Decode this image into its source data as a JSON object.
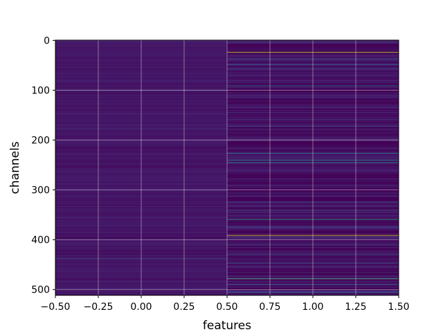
{
  "chart_data": {
    "type": "heatmap",
    "xlabel": "features",
    "ylabel": "channels",
    "colormap": "viridis",
    "grid": true,
    "xlim": [
      -0.5,
      1.5
    ],
    "ylim": [
      511.5,
      -0.5
    ],
    "x_ticks": [
      -0.5,
      -0.25,
      0.0,
      0.25,
      0.5,
      0.75,
      1.0,
      1.25,
      1.5
    ],
    "x_tick_labels": [
      "−0.50",
      "−0.25",
      "0.00",
      "0.25",
      "0.50",
      "0.75",
      "1.00",
      "1.25",
      "1.50"
    ],
    "y_ticks": [
      0,
      100,
      200,
      300,
      400,
      500
    ],
    "y_tick_labels": [
      "0",
      "100",
      "200",
      "300",
      "400",
      "500"
    ],
    "columns": [
      0,
      1
    ],
    "rows": 512,
    "column_0_base_value": 0.06,
    "column_1_base_value": 0.04,
    "column_0_highlights": [
      {
        "row": 3,
        "value": 0.15
      },
      {
        "row": 80,
        "value": 0.14
      },
      {
        "row": 176,
        "value": 0.16
      },
      {
        "row": 355,
        "value": 0.13
      },
      {
        "row": 438,
        "value": 0.22
      },
      {
        "row": 497,
        "value": 0.15
      }
    ],
    "column_1_highlights": [
      {
        "row": 3,
        "value": 0.3
      },
      {
        "row": 24,
        "value": 0.92
      },
      {
        "row": 37,
        "value": 0.28
      },
      {
        "row": 48,
        "value": 0.35
      },
      {
        "row": 57,
        "value": 0.22
      },
      {
        "row": 91,
        "value": 0.4
      },
      {
        "row": 172,
        "value": 0.3
      },
      {
        "row": 226,
        "value": 0.42
      },
      {
        "row": 240,
        "value": 0.45
      },
      {
        "row": 245,
        "value": 0.5
      },
      {
        "row": 325,
        "value": 0.25
      },
      {
        "row": 340,
        "value": 0.3
      },
      {
        "row": 359,
        "value": 0.62
      },
      {
        "row": 375,
        "value": 0.25
      },
      {
        "row": 391,
        "value": 0.95
      },
      {
        "row": 410,
        "value": 0.22
      },
      {
        "row": 430,
        "value": 0.3
      },
      {
        "row": 447,
        "value": 0.28
      },
      {
        "row": 478,
        "value": 0.7
      },
      {
        "row": 490,
        "value": 0.3
      },
      {
        "row": 505,
        "value": 0.35
      }
    ]
  }
}
